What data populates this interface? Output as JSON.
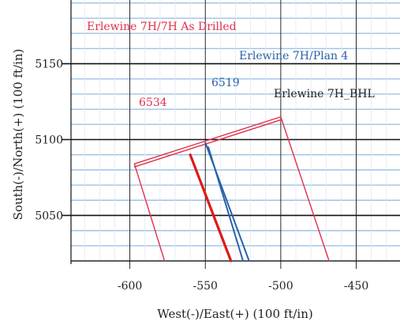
{
  "chart_data": {
    "type": "line",
    "xlabel": "West(-)/East(+) (100 ft/in)",
    "ylabel": "South(-)/North(+) (100 ft/in)",
    "xlim": [
      -639,
      -421
    ],
    "ylim": [
      5020,
      5192
    ],
    "x_ticks": [
      -600,
      -550,
      -500,
      -450
    ],
    "y_ticks": [
      5050,
      5100,
      5150
    ],
    "x_tick_labels": [
      "-600",
      "-550",
      "-500",
      "-450"
    ],
    "y_tick_labels": [
      "5050",
      "5100",
      "5150"
    ],
    "grid": true,
    "series": [
      {
        "name": "Erlewine 7H/7H As Drilled",
        "color": "#e2304a",
        "segments": [
          {
            "x": [
              -597,
              -500
            ],
            "y": [
              5084,
              5115
            ]
          },
          {
            "x": [
              -597,
              -500
            ],
            "y": [
              5082,
              5113
            ]
          },
          {
            "x": [
              -597,
              -577
            ],
            "y": [
              5084,
              5020
            ]
          },
          {
            "x": [
              -500,
              -468
            ],
            "y": [
              5115,
              5020
            ]
          }
        ]
      },
      {
        "name": "Erlewine 7H/Plan 4",
        "color": "#2a62a8",
        "segments": [
          {
            "x": [
              -550,
              -521
            ],
            "y": [
              5098,
              5020
            ]
          },
          {
            "x": [
              -548,
              -525
            ],
            "y": [
              5095,
              5020
            ]
          }
        ]
      },
      {
        "name": "Erlewine 7H_BHL",
        "color": "#e01818",
        "segments": [
          {
            "x": [
              -560,
              -533
            ],
            "y": [
              5090,
              5020
            ]
          }
        ]
      }
    ],
    "annotations": [
      {
        "text": "Erlewine 7H/7H As Drilled",
        "color": "#e2304a"
      },
      {
        "text": "Erlewine 7H/Plan 4",
        "color": "#2a62a8"
      },
      {
        "text": "Erlewine 7H_BHL",
        "color": "#222222"
      },
      {
        "text": "6519",
        "color": "#2a62a8"
      },
      {
        "text": "6534",
        "color": "#e2304a"
      }
    ]
  }
}
